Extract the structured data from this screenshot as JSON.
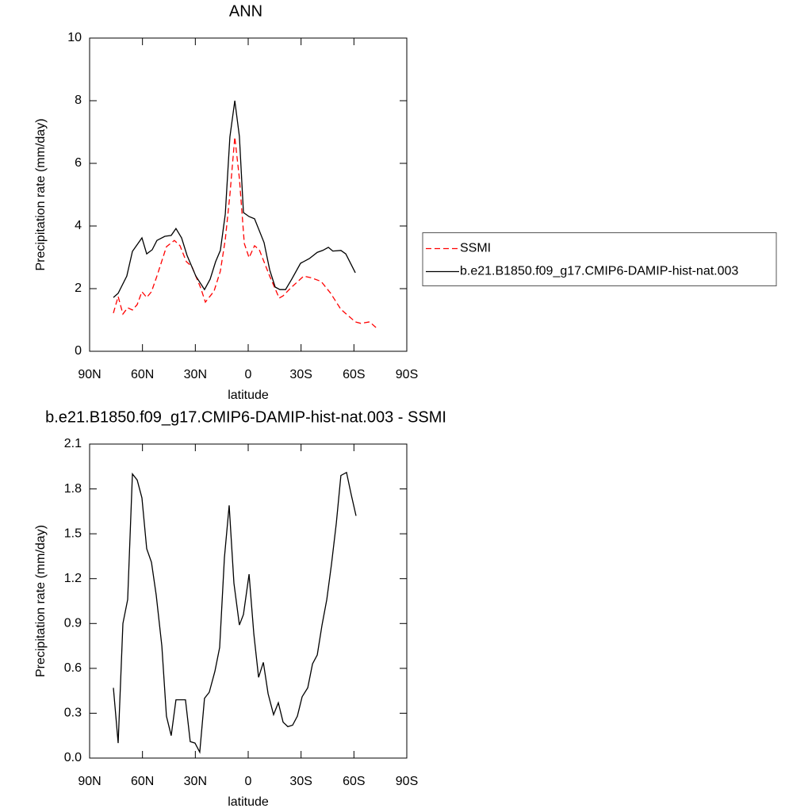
{
  "chart_data": [
    {
      "type": "line",
      "title": "ANN",
      "xlabel": "latitude",
      "ylabel": "Precipitation rate (mm/day)",
      "xlim": [
        90,
        -90
      ],
      "xticks": [
        {
          "value": 90,
          "label": "90N"
        },
        {
          "value": 60,
          "label": "60N"
        },
        {
          "value": 30,
          "label": "30N"
        },
        0,
        {
          "value": -30,
          "label": "30S"
        },
        {
          "value": -60,
          "label": "60S"
        },
        {
          "value": -90,
          "label": "90S"
        }
      ],
      "ylim": [
        0,
        10
      ],
      "yticks": [
        0,
        2,
        4,
        6,
        8,
        10
      ],
      "legend": "right",
      "series": [
        {
          "name": "SSMI",
          "color": "#ff0000",
          "dashed": true,
          "x": [
            76.5,
            73.8,
            71.1,
            68.4,
            65.7,
            63,
            60.3,
            57.6,
            54.9,
            51.8,
            46.4,
            41.9,
            38.7,
            35.1,
            32,
            27,
            24.3,
            19.4,
            15.8,
            13,
            10.4,
            7.6,
            5,
            2.2,
            -0.5,
            -3.6,
            -6.3,
            -12.2,
            -17.6,
            -19.8,
            -24.3,
            -31.5,
            -35.6,
            -41.4,
            -46.8,
            -52.6,
            -60.8,
            -63.9,
            -68.9,
            -72.5
          ],
          "values": [
            1.22,
            1.75,
            1.19,
            1.39,
            1.32,
            1.49,
            1.9,
            1.72,
            1.9,
            2.4,
            3.34,
            3.54,
            3.37,
            2.86,
            2.71,
            2.03,
            1.57,
            1.92,
            2.56,
            3.57,
            4.99,
            6.84,
            5.52,
            3.44,
            2.99,
            3.37,
            3.24,
            2.4,
            1.7,
            1.77,
            2.03,
            2.4,
            2.35,
            2.23,
            1.85,
            1.34,
            0.94,
            0.89,
            0.94,
            0.76
          ]
        },
        {
          "name": "b.e21.B1850.f09_g17.CMIP6-DAMIP-hist-nat.003",
          "color": "#000000",
          "dashed": false,
          "x": [
            76.5,
            73.8,
            68.9,
            65.7,
            60.3,
            57.6,
            54.5,
            51.8,
            47.3,
            43.7,
            41,
            37.8,
            34.7,
            29.7,
            24.8,
            21.6,
            18.5,
            15.8,
            13,
            10.4,
            7.6,
            5,
            2.7,
            -0.5,
            -3.6,
            -9,
            -12.2,
            -15.3,
            -18,
            -21.2,
            -24.7,
            -29.7,
            -34.7,
            -39.2,
            -42.3,
            -45.5,
            -48,
            -52.6,
            -55.4,
            -60.8
          ],
          "values": [
            1.72,
            1.85,
            2.4,
            3.19,
            3.62,
            3.11,
            3.24,
            3.54,
            3.67,
            3.7,
            3.92,
            3.62,
            3.06,
            2.4,
            1.97,
            2.3,
            2.86,
            3.22,
            4.38,
            6.84,
            8.0,
            6.86,
            4.43,
            4.3,
            4.23,
            3.47,
            2.6,
            2.05,
            1.97,
            1.97,
            2.3,
            2.81,
            2.96,
            3.16,
            3.22,
            3.32,
            3.2,
            3.22,
            3.11,
            2.51
          ]
        }
      ]
    },
    {
      "type": "line",
      "title": "b.e21.B1850.f09_g17.CMIP6-DAMIP-hist-nat.003 - SSMI",
      "xlabel": "latitude",
      "ylabel": "Precipitation rate (mm/day)",
      "xlim": [
        90,
        -90
      ],
      "xticks": [
        {
          "value": 90,
          "label": "90N"
        },
        {
          "value": 60,
          "label": "60N"
        },
        {
          "value": 30,
          "label": "30N"
        },
        0,
        {
          "value": -30,
          "label": "30S"
        },
        {
          "value": -60,
          "label": "60S"
        },
        {
          "value": -90,
          "label": "90S"
        }
      ],
      "ylim": [
        0,
        2.1
      ],
      "yticks": [
        {
          "value": 0,
          "label": "0.0"
        },
        0.3,
        0.6,
        0.9,
        1.2,
        1.5,
        1.8,
        2.1
      ],
      "series": [
        {
          "color": "#000000",
          "dashed": false,
          "x": [
            76.5,
            73.8,
            71.1,
            68.4,
            65.7,
            63,
            60.3,
            57.6,
            54.9,
            52.2,
            49,
            46.4,
            43.7,
            41,
            38.3,
            35.6,
            32.9,
            30.2,
            27.5,
            24.8,
            22.1,
            18.9,
            16.2,
            13.5,
            10.8,
            8.1,
            5,
            2.7,
            -0.5,
            -3.2,
            -5.9,
            -8.6,
            -11.3,
            -14.4,
            -17.1,
            -19.8,
            -22.5,
            -25.2,
            -27.9,
            -30.6,
            -33.8,
            -36.5,
            -39.2,
            -41.9,
            -44.6,
            -47.3,
            -50,
            -52.6,
            -55.8,
            -58.5,
            -61.2
          ],
          "values": [
            0.47,
            0.1,
            0.9,
            1.06,
            1.9,
            1.86,
            1.74,
            1.4,
            1.31,
            1.09,
            0.75,
            0.28,
            0.15,
            0.39,
            0.39,
            0.39,
            0.11,
            0.1,
            0.04,
            0.4,
            0.44,
            0.58,
            0.74,
            1.34,
            1.69,
            1.17,
            0.89,
            0.96,
            1.23,
            0.83,
            0.54,
            0.64,
            0.43,
            0.29,
            0.37,
            0.24,
            0.21,
            0.22,
            0.28,
            0.41,
            0.47,
            0.63,
            0.69,
            0.89,
            1.06,
            1.3,
            1.57,
            1.89,
            1.91,
            1.76,
            1.62
          ]
        }
      ]
    }
  ]
}
